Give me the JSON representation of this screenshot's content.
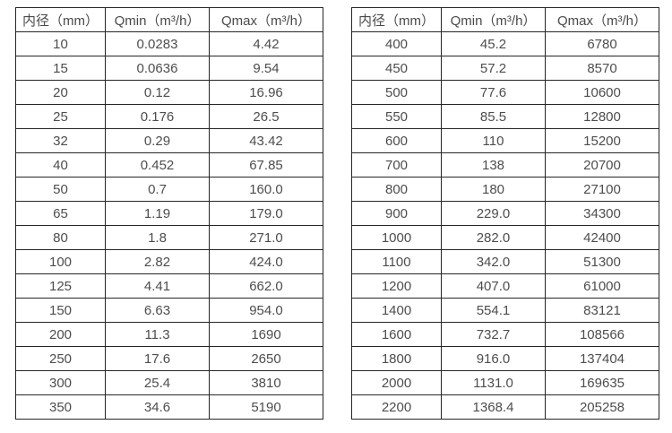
{
  "page": {
    "background_color": "#ffffff",
    "text_color": "#4d4d4d",
    "border_color": "#262626"
  },
  "tables": [
    {
      "name": "flow-spec-table-small-diameters",
      "headers": [
        "内径（mm）",
        "Qmin（m³/h）",
        "Qmax（m³/h）"
      ],
      "rows": [
        [
          "10",
          "0.0283",
          "4.42"
        ],
        [
          "15",
          "0.0636",
          "9.54"
        ],
        [
          "20",
          "0.12",
          "16.96"
        ],
        [
          "25",
          "0.176",
          "26.5"
        ],
        [
          "32",
          "0.29",
          "43.42"
        ],
        [
          "40",
          "0.452",
          "67.85"
        ],
        [
          "50",
          "0.7",
          "160.0"
        ],
        [
          "65",
          "1.19",
          "179.0"
        ],
        [
          "80",
          "1.8",
          "271.0"
        ],
        [
          "100",
          "2.82",
          "424.0"
        ],
        [
          "125",
          "4.41",
          "662.0"
        ],
        [
          "150",
          "6.63",
          "954.0"
        ],
        [
          "200",
          "11.3",
          "1690"
        ],
        [
          "250",
          "17.6",
          "2650"
        ],
        [
          "300",
          "25.4",
          "3810"
        ],
        [
          "350",
          "34.6",
          "5190"
        ]
      ]
    },
    {
      "name": "flow-spec-table-large-diameters",
      "headers": [
        "内径（mm）",
        "Qmin（m³/h）",
        "Qmax（m³/h）"
      ],
      "rows": [
        [
          "400",
          "45.2",
          "6780"
        ],
        [
          "450",
          "57.2",
          "8570"
        ],
        [
          "500",
          "77.6",
          "10600"
        ],
        [
          "550",
          "85.5",
          "12800"
        ],
        [
          "600",
          "110",
          "15200"
        ],
        [
          "700",
          "138",
          "20700"
        ],
        [
          "800",
          "180",
          "27100"
        ],
        [
          "900",
          "229.0",
          "34300"
        ],
        [
          "1000",
          "282.0",
          "42400"
        ],
        [
          "1100",
          "342.0",
          "51300"
        ],
        [
          "1200",
          "407.0",
          "61000"
        ],
        [
          "1400",
          "554.1",
          "83121"
        ],
        [
          "1600",
          "732.7",
          "108566"
        ],
        [
          "1800",
          "916.0",
          "137404"
        ],
        [
          "2000",
          "1131.0",
          "169635"
        ],
        [
          "2200",
          "1368.4",
          "205258"
        ]
      ]
    }
  ]
}
